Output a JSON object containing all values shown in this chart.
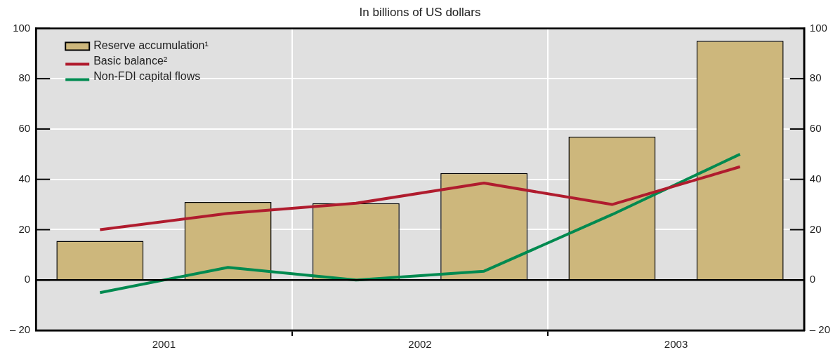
{
  "chart_data": {
    "type": "bar",
    "title": "In billions of US dollars",
    "x": [
      2001.25,
      2001.75,
      2002.25,
      2002.75,
      2003.25,
      2003.75
    ],
    "xlim": [
      2001,
      2004
    ],
    "xticks": [
      {
        "value": 2001.5,
        "label": "2001"
      },
      {
        "value": 2002,
        "label": null
      },
      {
        "value": 2002.5,
        "label": "2002"
      },
      {
        "value": 2003,
        "label": null
      },
      {
        "value": 2003.5,
        "label": "2003"
      }
    ],
    "ylim": [
      -20,
      100
    ],
    "yticks": [
      {
        "value": -20,
        "label": "– 20"
      },
      0,
      20,
      40,
      60,
      80,
      100
    ],
    "y2lim": [
      -20,
      100
    ],
    "y2ticks": [
      {
        "value": -20,
        "label": "– 20"
      },
      0,
      20,
      40,
      60,
      80,
      100
    ],
    "series": [
      {
        "name": "Reserve accumulation¹",
        "color": "#cdb77c",
        "values": [
          15.5,
          31,
          30.5,
          42.5,
          57,
          95
        ]
      },
      {
        "name": "Basic balance²",
        "type": "line",
        "color": "#b01c2e",
        "values": [
          20,
          26.5,
          30.5,
          38.5,
          30,
          45
        ]
      },
      {
        "name": "Non-FDI capital flows",
        "type": "line",
        "color": "#008a50",
        "values": [
          -5,
          5,
          0,
          3.5,
          26,
          50
        ]
      }
    ],
    "ref_lines": [
      {
        "axis": "y",
        "value": 0,
        "color": "#000000"
      }
    ],
    "grid": true,
    "legend": "top left",
    "marker": "none",
    "line_style": "solid"
  }
}
